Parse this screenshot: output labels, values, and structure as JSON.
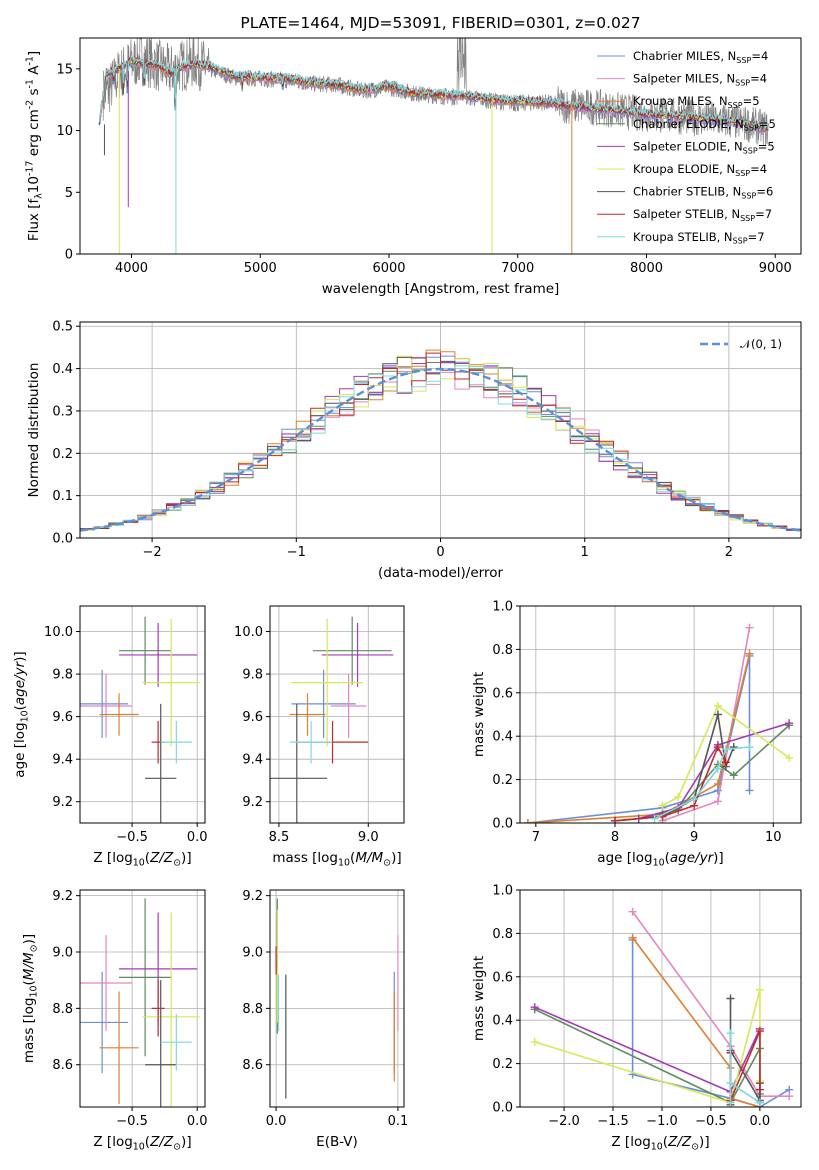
{
  "chart_data": [
    {
      "type": "line",
      "title": "PLATE=1464, MJD=53091, FIBERID=0301, z=0.027",
      "xlabel": "wavelength [Angstrom, rest frame]",
      "ylabel": "Flux [f$_\\lambda$10$^{-17}$ erg cm$^{-2}$ s$^{-1}$ A$^{-1}$]",
      "xlim": [
        3600,
        9200
      ],
      "ylim": [
        0,
        17.5
      ],
      "xticks": [
        4000,
        5000,
        6000,
        7000,
        8000,
        9000
      ],
      "yticks": [
        0,
        5,
        10,
        15
      ],
      "grid": false,
      "legend_position": "top-right",
      "spectrum_color": "#808080",
      "spectrum": {
        "x": [
          3800,
          3900,
          4000,
          4100,
          4200,
          4300,
          4400,
          4500,
          4600,
          4800,
          5000,
          5200,
          5400,
          5600,
          5800,
          6000,
          6200,
          6400,
          6600,
          6800,
          7000,
          7200,
          7400,
          7600,
          7800,
          8000,
          8200,
          8400,
          8600,
          8800,
          8950
        ],
        "y": [
          13.0,
          14.5,
          15.5,
          15.8,
          15.3,
          14.8,
          15.3,
          15.6,
          15.0,
          14.3,
          14.2,
          14.1,
          13.8,
          13.7,
          13.2,
          13.5,
          13.0,
          12.8,
          12.7,
          12.4,
          12.2,
          12.3,
          12.0,
          11.9,
          11.6,
          11.3,
          11.2,
          11.0,
          10.8,
          10.5,
          10.1
        ]
      },
      "model": {
        "x": [
          3750,
          3800,
          3900,
          4000,
          4100,
          4200,
          4300,
          4400,
          4500,
          4600,
          4800,
          5000,
          5200,
          5400,
          5600,
          5800,
          6000,
          6200,
          6400,
          6600,
          6800,
          7000,
          7200,
          7400,
          7600,
          7800,
          8000,
          8200,
          8400,
          8600,
          8800,
          8950
        ],
        "y": [
          10.5,
          14.6,
          15.0,
          15.7,
          15.4,
          15.3,
          14.6,
          15.2,
          15.4,
          15.2,
          14.4,
          14.3,
          14.2,
          13.9,
          13.7,
          13.3,
          13.6,
          13.0,
          12.9,
          12.8,
          12.5,
          12.4,
          12.3,
          12.0,
          11.8,
          11.6,
          11.3,
          11.2,
          11.0,
          10.8,
          10.5,
          10.1
        ]
      },
      "series": [
        {
          "name": "Chabrier MILES, N$_{SSP}$=4",
          "color": "#6a8fdb"
        },
        {
          "name": "Salpeter MILES, N$_{SSP}$=4",
          "color": "#e487c0"
        },
        {
          "name": "Kroupa MILES, N$_{SSP}$=5",
          "color": "#e0802f"
        },
        {
          "name": "Chabrier ELODIE, N$_{SSP}$=5",
          "color": "#5e8c5e"
        },
        {
          "name": "Salpeter ELODIE, N$_{SSP}$=5",
          "color": "#a33ab5"
        },
        {
          "name": "Kroupa ELODIE, N$_{SSP}$=4",
          "color": "#d9e855"
        },
        {
          "name": "Chabrier STELIB, N$_{SSP}$=6",
          "color": "#555555"
        },
        {
          "name": "Salpeter STELIB, N$_{SSP}$=7",
          "color": "#c02a2a"
        },
        {
          "name": "Kroupa STELIB, N$_{SSP}$=7",
          "color": "#7fd8dc"
        }
      ]
    },
    {
      "type": "line",
      "xlabel": "(data-model)/error",
      "ylabel": "Normed distribution",
      "xlim": [
        -2.5,
        2.5
      ],
      "ylim": [
        0,
        0.51
      ],
      "xticks": [
        -2,
        -1,
        0,
        1,
        2
      ],
      "yticks": [
        0.0,
        0.1,
        0.2,
        0.3,
        0.4,
        0.5
      ],
      "grid": true,
      "legend_position": "top-right",
      "gaussian": {
        "name": "$\\mathcal{N}(0, 1)$",
        "color": "#5b8fd6"
      },
      "histogram": {
        "bin_width": 0.1,
        "start": -2.5,
        "center_value": 0.4
      }
    },
    {
      "type": "scatter",
      "xlabel": "Z [log$_{10}$($Z/Z_\\odot$)]",
      "ylabel": "age  [log$_{10}$($age/yr$)]",
      "xlim": [
        -0.9,
        0.06
      ],
      "ylim": [
        9.1,
        10.12
      ],
      "xticks": [
        -0.5,
        0.0
      ],
      "yticks": [
        9.2,
        9.4,
        9.6,
        9.8,
        10.0
      ],
      "grid": true,
      "points": [
        {
          "x": -0.73,
          "xerr": 0.2,
          "y": 9.66,
          "yerr": 0.16,
          "series": 0
        },
        {
          "x": -0.7,
          "xerr": 0.2,
          "y": 9.65,
          "yerr": 0.15,
          "series": 1
        },
        {
          "x": -0.6,
          "xerr": 0.15,
          "y": 9.61,
          "yerr": 0.1,
          "series": 2
        },
        {
          "x": -0.4,
          "xerr": 0.2,
          "y": 9.91,
          "yerr": 0.16,
          "series": 3
        },
        {
          "x": -0.3,
          "xerr": 0.3,
          "y": 9.89,
          "yerr": 0.15,
          "series": 4
        },
        {
          "x": -0.2,
          "xerr": 0.22,
          "y": 9.76,
          "yerr": 0.3,
          "series": 5
        },
        {
          "x": -0.28,
          "xerr": 0.12,
          "y": 9.31,
          "yerr": 0.35,
          "series": 6
        },
        {
          "x": -0.3,
          "xerr": 0.05,
          "y": 9.48,
          "yerr": 0.1,
          "series": 7
        },
        {
          "x": -0.16,
          "xerr": 0.12,
          "y": 9.48,
          "yerr": 0.1,
          "series": 8
        }
      ]
    },
    {
      "type": "scatter",
      "xlabel": "mass [log$_{10}$($M/M_\\odot$)]",
      "xlim": [
        8.45,
        9.2
      ],
      "ylim": [
        9.1,
        10.12
      ],
      "xticks": [
        8.5,
        9.0
      ],
      "yticks": [
        9.2,
        9.4,
        9.6,
        9.8,
        10.0
      ],
      "grid": true,
      "points": [
        {
          "x": 8.75,
          "xerr": 0.18,
          "y": 9.66,
          "yerr": 0.16,
          "series": 0
        },
        {
          "x": 8.89,
          "xerr": 0.1,
          "y": 9.65,
          "yerr": 0.15,
          "series": 1
        },
        {
          "x": 8.66,
          "xerr": 0.1,
          "y": 9.61,
          "yerr": 0.1,
          "series": 2
        },
        {
          "x": 8.91,
          "xerr": 0.22,
          "y": 9.91,
          "yerr": 0.16,
          "series": 3
        },
        {
          "x": 8.94,
          "xerr": 0.2,
          "y": 9.89,
          "yerr": 0.15,
          "series": 4
        },
        {
          "x": 8.77,
          "xerr": 0.2,
          "y": 9.76,
          "yerr": 0.3,
          "series": 5
        },
        {
          "x": 8.6,
          "xerr": 0.17,
          "y": 9.31,
          "yerr": 0.35,
          "series": 6
        },
        {
          "x": 8.8,
          "xerr": 0.2,
          "y": 9.48,
          "yerr": 0.1,
          "series": 7
        },
        {
          "x": 8.68,
          "xerr": 0.12,
          "y": 9.48,
          "yerr": 0.1,
          "series": 8
        }
      ]
    },
    {
      "type": "line",
      "xlabel": "age  [log$_{10}$($age/yr$)]",
      "ylabel": "mass weight",
      "xlim": [
        6.8,
        10.35
      ],
      "ylim": [
        0,
        1.0
      ],
      "xticks": [
        7,
        8,
        9,
        10
      ],
      "yticks": [
        0.0,
        0.2,
        0.4,
        0.6,
        0.8,
        1.0
      ],
      "grid": true,
      "series": [
        {
          "series": 0,
          "x": [
            6.9,
            8.6,
            9.3,
            9.7,
            9.7
          ],
          "y": [
            0.0,
            0.07,
            0.15,
            0.77,
            0.15
          ]
        },
        {
          "series": 1,
          "x": [
            8.6,
            9.3,
            9.7
          ],
          "y": [
            0.01,
            0.1,
            0.9
          ]
        },
        {
          "series": 2,
          "x": [
            6.9,
            8.6,
            9.3,
            9.7
          ],
          "y": [
            0.0,
            0.04,
            0.18,
            0.78
          ]
        },
        {
          "series": 3,
          "x": [
            8.3,
            8.8,
            9.3,
            9.5,
            10.2
          ],
          "y": [
            0.02,
            0.06,
            0.27,
            0.22,
            0.45
          ]
        },
        {
          "series": 4,
          "x": [
            8.3,
            8.8,
            9.3,
            10.2
          ],
          "y": [
            0.02,
            0.07,
            0.36,
            0.46
          ]
        },
        {
          "series": 5,
          "x": [
            8.6,
            8.8,
            9.3,
            10.2
          ],
          "y": [
            0.08,
            0.12,
            0.54,
            0.3
          ]
        },
        {
          "series": 6,
          "x": [
            8.0,
            8.6,
            9.0,
            9.3,
            9.4,
            9.5
          ],
          "y": [
            0.01,
            0.03,
            0.11,
            0.5,
            0.26,
            0.35
          ]
        },
        {
          "series": 7,
          "x": [
            8.0,
            8.6,
            9.0,
            9.3,
            9.4
          ],
          "y": [
            0.01,
            0.03,
            0.08,
            0.35,
            0.28
          ]
        },
        {
          "series": 8,
          "x": [
            8.5,
            9.0,
            9.3,
            9.4,
            9.7
          ],
          "y": [
            0.02,
            0.11,
            0.25,
            0.34,
            0.35
          ]
        }
      ]
    },
    {
      "type": "scatter",
      "xlabel": "Z [log$_{10}$($Z/Z_\\odot$)]",
      "ylabel": "mass [log$_{10}$($M/M_\\odot$)]",
      "xlim": [
        -0.9,
        0.06
      ],
      "ylim": [
        8.45,
        9.22
      ],
      "xticks": [
        -0.5,
        0.0
      ],
      "yticks": [
        8.6,
        8.8,
        9.0,
        9.2
      ],
      "grid": true,
      "points": [
        {
          "x": -0.73,
          "xerr": 0.2,
          "y": 8.75,
          "yerr": 0.18,
          "series": 0
        },
        {
          "x": -0.7,
          "xerr": 0.2,
          "y": 8.89,
          "yerr": 0.17,
          "series": 1
        },
        {
          "x": -0.6,
          "xerr": 0.15,
          "y": 8.66,
          "yerr": 0.2,
          "series": 2
        },
        {
          "x": -0.4,
          "xerr": 0.2,
          "y": 8.91,
          "yerr": 0.28,
          "series": 3
        },
        {
          "x": -0.3,
          "xerr": 0.3,
          "y": 8.94,
          "yerr": 0.2,
          "series": 4
        },
        {
          "x": -0.2,
          "xerr": 0.22,
          "y": 8.77,
          "yerr": 0.37,
          "series": 5
        },
        {
          "x": -0.28,
          "xerr": 0.12,
          "y": 8.6,
          "yerr": 0.3,
          "series": 6
        },
        {
          "x": -0.3,
          "xerr": 0.05,
          "y": 8.8,
          "yerr": 0.1,
          "series": 7
        },
        {
          "x": -0.16,
          "xerr": 0.12,
          "y": 8.68,
          "yerr": 0.1,
          "series": 8
        }
      ]
    },
    {
      "type": "scatter",
      "xlabel": "E(B-V)",
      "xlim": [
        -0.005,
        0.105
      ],
      "ylim": [
        8.45,
        9.22
      ],
      "xticks": [
        0.0,
        0.1
      ],
      "yticks": [
        8.6,
        8.8,
        9.0,
        9.2
      ],
      "grid": true,
      "points": [
        {
          "x": 0.097,
          "y": 8.75,
          "yerr": 0.18,
          "series": 0
        },
        {
          "x": 0.1,
          "y": 8.89,
          "yerr": 0.17,
          "series": 1
        },
        {
          "x": 0.097,
          "y": 8.7,
          "yerr": 0.16,
          "series": 2
        },
        {
          "x": 0.001,
          "y": 8.95,
          "yerr": 0.24,
          "series": 3
        },
        {
          "x": 0.001,
          "y": 9.04,
          "yerr": 0.1,
          "series": 4
        },
        {
          "x": 0.001,
          "y": 8.95,
          "yerr": 0.2,
          "series": 5
        },
        {
          "x": 0.008,
          "y": 8.7,
          "yerr": 0.22,
          "series": 6
        },
        {
          "x": 0.0,
          "y": 8.97,
          "yerr": 0.05,
          "series": 7
        },
        {
          "x": 0.002,
          "y": 8.82,
          "yerr": 0.1,
          "series": 8
        }
      ]
    },
    {
      "type": "line",
      "xlabel": "Z [log$_{10}$($Z/Z_\\odot$)]",
      "ylabel": "mass weight",
      "xlim": [
        -2.45,
        0.42
      ],
      "ylim": [
        0,
        1.0
      ],
      "xticks": [
        -2.0,
        -1.5,
        -1.0,
        -0.5,
        0.0
      ],
      "yticks": [
        0.0,
        0.2,
        0.4,
        0.6,
        0.8,
        1.0
      ],
      "grid": true,
      "series": [
        {
          "series": 0,
          "x": [
            -1.3,
            -1.3,
            -0.3,
            0.0,
            0.3
          ],
          "y": [
            0.77,
            0.15,
            0.04,
            0.0,
            0.08
          ]
        },
        {
          "series": 1,
          "x": [
            -1.3,
            -0.3,
            0.0,
            0.3
          ],
          "y": [
            0.9,
            0.28,
            0.05,
            0.05
          ]
        },
        {
          "series": 2,
          "x": [
            -1.3,
            -0.3,
            -0.3,
            0.0
          ],
          "y": [
            0.78,
            0.18,
            0.04,
            0.0
          ]
        },
        {
          "series": 3,
          "x": [
            -2.3,
            -0.3,
            0.0,
            0.0
          ],
          "y": [
            0.45,
            0.02,
            0.27,
            0.06
          ]
        },
        {
          "series": 4,
          "x": [
            -2.3,
            -0.3,
            0.0,
            0.0
          ],
          "y": [
            0.46,
            0.07,
            0.36,
            0.02
          ]
        },
        {
          "series": 5,
          "x": [
            -2.3,
            -0.3,
            0.0,
            0.0
          ],
          "y": [
            0.3,
            0.02,
            0.54,
            0.12
          ]
        },
        {
          "series": 6,
          "x": [
            -0.3,
            -0.3,
            -0.3,
            0.0,
            0.0
          ],
          "y": [
            0.5,
            0.01,
            0.26,
            0.03,
            0.11
          ]
        },
        {
          "series": 7,
          "x": [
            -0.3,
            -0.3,
            0.0,
            0.0
          ],
          "y": [
            0.25,
            0.03,
            0.35,
            0.08
          ]
        },
        {
          "series": 8,
          "x": [
            -0.3,
            -0.3,
            -0.3,
            0.0
          ],
          "y": [
            0.34,
            0.02,
            0.11,
            0.02
          ]
        }
      ]
    }
  ]
}
